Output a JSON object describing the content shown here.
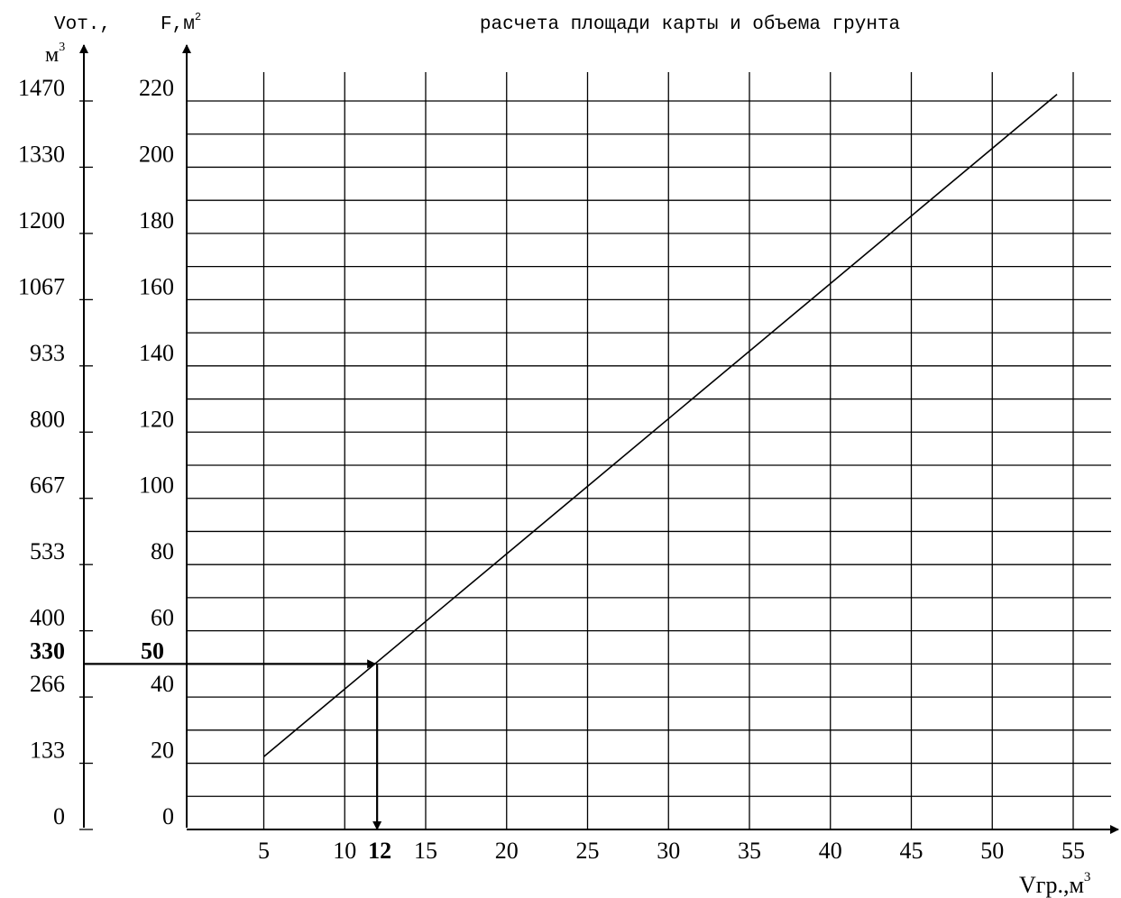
{
  "chart_data": {
    "type": "line",
    "title": "расчета площади карты и объема грунта",
    "xlabel": "Vгр.,м",
    "xlabel_sup": "3",
    "ylabel_left": "Vот.,",
    "ylabel_left_unit": "м",
    "ylabel_left_unit_sup": "3",
    "ylabel_right": "F,м",
    "ylabel_right_sup": "2",
    "x_ticks": [
      "5",
      "10",
      "15",
      "20",
      "25",
      "30",
      "35",
      "40",
      "45",
      "50",
      "55"
    ],
    "y_ticks_F": [
      "0",
      "20",
      "40",
      "60",
      "80",
      "100",
      "120",
      "140",
      "160",
      "180",
      "200",
      "220"
    ],
    "y_ticks_V": [
      "0",
      "133",
      "266",
      "400",
      "533",
      "667",
      "800",
      "933",
      "1067",
      "1200",
      "1330",
      "1470"
    ],
    "xlim": [
      0,
      55
    ],
    "ylim": [
      0,
      220
    ],
    "grid": true,
    "series": [
      {
        "x": [
          5,
          54
        ],
        "y": [
          22,
          222
        ]
      }
    ],
    "annotation": {
      "x": 12,
      "y": 50,
      "x_label": "12",
      "y_label_F": "50",
      "y_label_V": "330"
    }
  }
}
